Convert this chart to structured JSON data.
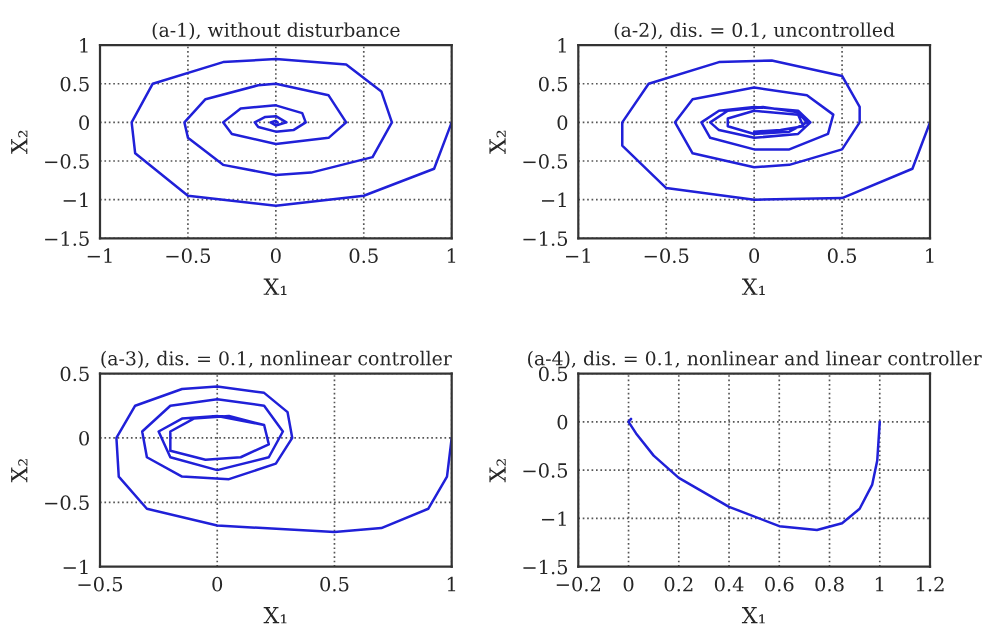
{
  "chart_data": [
    {
      "type": "line",
      "title": "(a-1), without disturbance",
      "xlabel": "X₁",
      "ylabel": "X₂",
      "xlim": [
        -1,
        1
      ],
      "xticks": [
        -1,
        -0.5,
        0,
        0.5,
        1
      ],
      "ylim": [
        -1.5,
        1
      ],
      "yticks": [
        -1.5,
        -1,
        -0.5,
        0,
        0.5,
        1
      ],
      "grid": true,
      "line_style": "solid",
      "series": [
        {
          "color": "#2020d8",
          "x": [
            1,
            0.9,
            0.5,
            0,
            -0.5,
            -0.8,
            -0.82,
            -0.7,
            -0.3,
            0,
            0.4,
            0.6,
            0.66,
            0.55,
            0.2,
            0,
            -0.3,
            -0.5,
            -0.52,
            -0.4,
            -0.1,
            0,
            0.3,
            0.4,
            0.3,
            0,
            -0.25,
            -0.3,
            -0.2,
            0,
            0.15,
            0.17,
            0.1,
            0,
            -0.1,
            -0.12,
            -0.06,
            0,
            0.06,
            0,
            -0.03,
            0,
            0.01,
            0
          ],
          "values": [
            0,
            -0.6,
            -0.95,
            -1.08,
            -0.95,
            -0.4,
            0,
            0.5,
            0.78,
            0.82,
            0.75,
            0.4,
            0,
            -0.45,
            -0.65,
            -0.68,
            -0.55,
            -0.2,
            0,
            0.3,
            0.48,
            0.5,
            0.35,
            0,
            -0.2,
            -0.28,
            -0.15,
            0,
            0.18,
            0.22,
            0.12,
            0,
            -0.1,
            -0.12,
            -0.06,
            0,
            0.07,
            0.08,
            0,
            -0.04,
            0,
            0.02,
            0,
            0
          ]
        }
      ]
    },
    {
      "type": "line",
      "title": "(a-2), dis. = 0.1, uncontrolled",
      "xlabel": "X₁",
      "ylabel": "X₂",
      "xlim": [
        -1,
        1
      ],
      "xticks": [
        -1,
        -0.5,
        0,
        0.5,
        1
      ],
      "ylim": [
        -1.5,
        1
      ],
      "yticks": [
        -1.5,
        -1,
        -0.5,
        0,
        0.5,
        1
      ],
      "grid": true,
      "line_style": "solid",
      "series": [
        {
          "color": "#2020d8",
          "x": [
            1,
            0.9,
            0.5,
            0,
            -0.5,
            -0.75,
            -0.75,
            -0.6,
            -0.2,
            0.1,
            0.5,
            0.6,
            0.6,
            0.5,
            0.2,
            0,
            -0.35,
            -0.45,
            -0.35,
            0,
            0.3,
            0.45,
            0.42,
            0.2,
            0,
            -0.25,
            -0.3,
            -0.2,
            0,
            0.25,
            0.32,
            0.25,
            0,
            -0.2,
            -0.25,
            -0.15,
            0.05,
            0.25,
            0.3,
            0.2,
            0,
            -0.15,
            -0.15,
            0,
            0.25,
            0.28,
            0.15,
            0
          ],
          "values": [
            0,
            -0.6,
            -0.98,
            -1,
            -0.85,
            -0.3,
            0,
            0.5,
            0.78,
            0.8,
            0.6,
            0.2,
            0,
            -0.35,
            -0.55,
            -0.58,
            -0.4,
            0,
            0.3,
            0.45,
            0.35,
            0.1,
            -0.15,
            -0.35,
            -0.35,
            -0.2,
            0,
            0.15,
            0.2,
            0.15,
            0,
            -0.15,
            -0.2,
            -0.1,
            0,
            0.15,
            0.2,
            0.13,
            0,
            -0.12,
            -0.15,
            -0.05,
            0.05,
            0.15,
            0.1,
            -0.05,
            -0.1,
            -0.12
          ]
        }
      ]
    },
    {
      "type": "line",
      "title": "(a-3), dis. = 0.1, nonlinear controller",
      "xlabel": "X₁",
      "ylabel": "X₂",
      "xlim": [
        -0.5,
        1
      ],
      "xticks": [
        -0.5,
        0,
        0.5,
        1
      ],
      "ylim": [
        -1,
        0.5
      ],
      "yticks": [
        -1,
        -0.5,
        0,
        0.5
      ],
      "grid": true,
      "line_style": "solid",
      "series": [
        {
          "color": "#2020d8",
          "x": [
            1,
            0.98,
            0.9,
            0.7,
            0.5,
            0,
            -0.3,
            -0.42,
            -0.43,
            -0.35,
            -0.15,
            0,
            0.2,
            0.3,
            0.32,
            0.25,
            0.05,
            -0.15,
            -0.3,
            -0.32,
            -0.2,
            0,
            0.2,
            0.28,
            0.22,
            0,
            -0.2,
            -0.25,
            -0.15,
            0,
            0.2,
            0.22,
            0.1,
            -0.05,
            -0.2,
            -0.2,
            -0.1,
            0.05,
            0.2,
            0.22,
            0.1,
            -0.05,
            -0.2
          ],
          "values": [
            0,
            -0.3,
            -0.55,
            -0.7,
            -0.73,
            -0.68,
            -0.55,
            -0.3,
            0,
            0.25,
            0.38,
            0.4,
            0.35,
            0.2,
            0,
            -0.2,
            -0.32,
            -0.3,
            -0.15,
            0.05,
            0.25,
            0.3,
            0.25,
            0.05,
            -0.15,
            -0.25,
            -0.15,
            0.05,
            0.15,
            0.17,
            0.1,
            -0.05,
            -0.15,
            -0.17,
            -0.1,
            0.05,
            0.15,
            0.17,
            0.1,
            -0.05,
            -0.15,
            -0.17,
            -0.1
          ]
        }
      ]
    },
    {
      "type": "line",
      "title": "(a-4), dis. = 0.1, nonlinear and linear controller",
      "xlabel": "X₁",
      "ylabel": "X₂",
      "xlim": [
        -0.2,
        1.2
      ],
      "xticks": [
        -0.2,
        0,
        0.2,
        0.4,
        0.6,
        0.8,
        1,
        1.2
      ],
      "ylim": [
        -1.5,
        0.5
      ],
      "yticks": [
        -1.5,
        -1,
        -0.5,
        0,
        0.5
      ],
      "grid": true,
      "line_style": "solid",
      "series": [
        {
          "color": "#2020d8",
          "x": [
            1,
            0.99,
            0.97,
            0.92,
            0.85,
            0.75,
            0.6,
            0.4,
            0.2,
            0.1,
            0.03,
            0,
            0.01
          ],
          "values": [
            0,
            -0.4,
            -0.65,
            -0.9,
            -1.05,
            -1.12,
            -1.08,
            -0.88,
            -0.58,
            -0.35,
            -0.12,
            0,
            0.03
          ]
        }
      ]
    }
  ]
}
